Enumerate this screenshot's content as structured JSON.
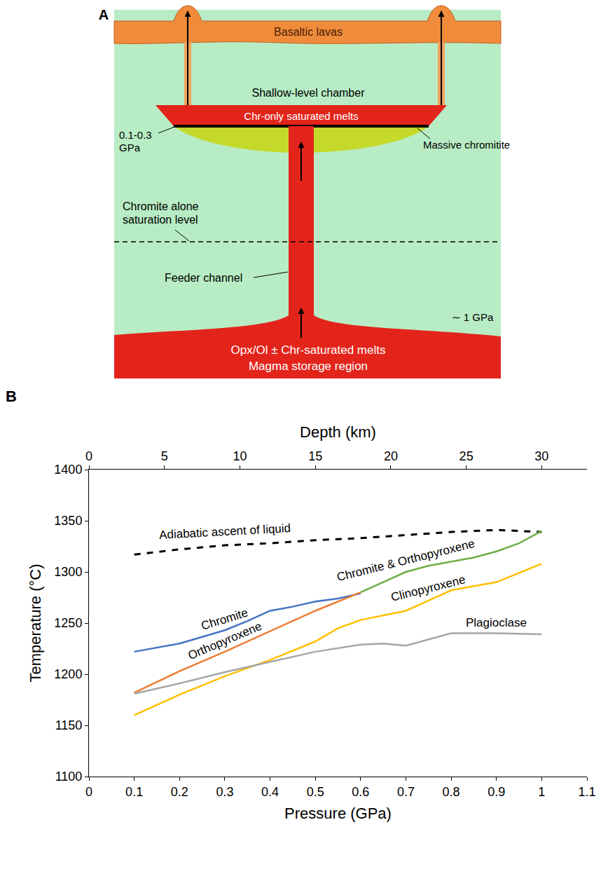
{
  "diagram": {
    "panel_label": "A",
    "top_layer": "Basaltic lavas",
    "chamber": "Shallow-level chamber",
    "chamber_melt": "Chr-only saturated melts",
    "chamber_pressure": "0.1-0.3 GPa",
    "chromitite": "Massive chromitite",
    "saturation_level": "Chromite alone saturation level",
    "channel": "Feeder channel",
    "storage_pressure": "∼ 1 GPa",
    "storage_melt": "Opx/Ol ± Chr-saturated melts",
    "storage": "Magma storage region"
  },
  "chart_data": {
    "panel_label": "B",
    "type": "line",
    "x_label": "Pressure (GPa)",
    "y_label": "Temperature (°C)",
    "x2_label": "Depth (km)",
    "xlim": [
      0,
      1.1
    ],
    "xticks": [
      0,
      0.1,
      0.2,
      0.3,
      0.4,
      0.5,
      0.6,
      0.7,
      0.8,
      0.9,
      1,
      1.1
    ],
    "x2lim": [
      0,
      33
    ],
    "x2ticks": [
      0,
      5,
      10,
      15,
      20,
      25,
      30
    ],
    "ylim": [
      1100,
      1400
    ],
    "yticks": [
      1100,
      1150,
      1200,
      1250,
      1300,
      1350,
      1400
    ],
    "grid": false,
    "series": [
      {
        "name": "Adiabatic ascent of liquid",
        "color": "#000000",
        "line_style": "dashed",
        "x": [
          0.1,
          0.2,
          0.3,
          0.4,
          0.5,
          0.6,
          0.7,
          0.8,
          0.9,
          1.0
        ],
        "values": [
          1317,
          1322,
          1326,
          1328,
          1331,
          1333,
          1336,
          1339,
          1341,
          1339
        ]
      },
      {
        "name": "Chromite",
        "color": "#4472c4",
        "line_style": "solid",
        "x": [
          0.1,
          0.2,
          0.3,
          0.35,
          0.4,
          0.45,
          0.5,
          0.55,
          0.6
        ],
        "values": [
          1222,
          1230,
          1243,
          1252,
          1262,
          1266,
          1271,
          1274,
          1279
        ]
      },
      {
        "name": "Orthopyroxene",
        "color": "#ed7d31",
        "line_style": "solid",
        "x": [
          0.1,
          0.2,
          0.3,
          0.4,
          0.5,
          0.6
        ],
        "values": [
          1182,
          1203,
          1222,
          1242,
          1262,
          1280
        ]
      },
      {
        "name": "Chromite & Orthopyroxene",
        "color": "#70ad47",
        "line_style": "solid",
        "x": [
          0.6,
          0.65,
          0.7,
          0.75,
          0.8,
          0.85,
          0.9,
          0.95,
          1.0
        ],
        "values": [
          1280,
          1290,
          1300,
          1306,
          1310,
          1314,
          1320,
          1328,
          1340
        ]
      },
      {
        "name": "Clinopyroxene",
        "color": "#ffc000",
        "line_style": "solid",
        "x": [
          0.1,
          0.2,
          0.3,
          0.4,
          0.5,
          0.55,
          0.6,
          0.7,
          0.75,
          0.8,
          0.9,
          1.0
        ],
        "values": [
          1160,
          1180,
          1198,
          1214,
          1232,
          1245,
          1253,
          1262,
          1272,
          1282,
          1290,
          1308
        ]
      },
      {
        "name": "Plagioclase",
        "color": "#a5a5a5",
        "line_style": "solid",
        "x": [
          0.1,
          0.2,
          0.3,
          0.4,
          0.5,
          0.6,
          0.65,
          0.7,
          0.75,
          0.8,
          0.9,
          1.0
        ],
        "values": [
          1181,
          1191,
          1202,
          1212,
          1222,
          1229,
          1230,
          1228,
          1234,
          1240,
          1240,
          1239
        ]
      }
    ]
  }
}
